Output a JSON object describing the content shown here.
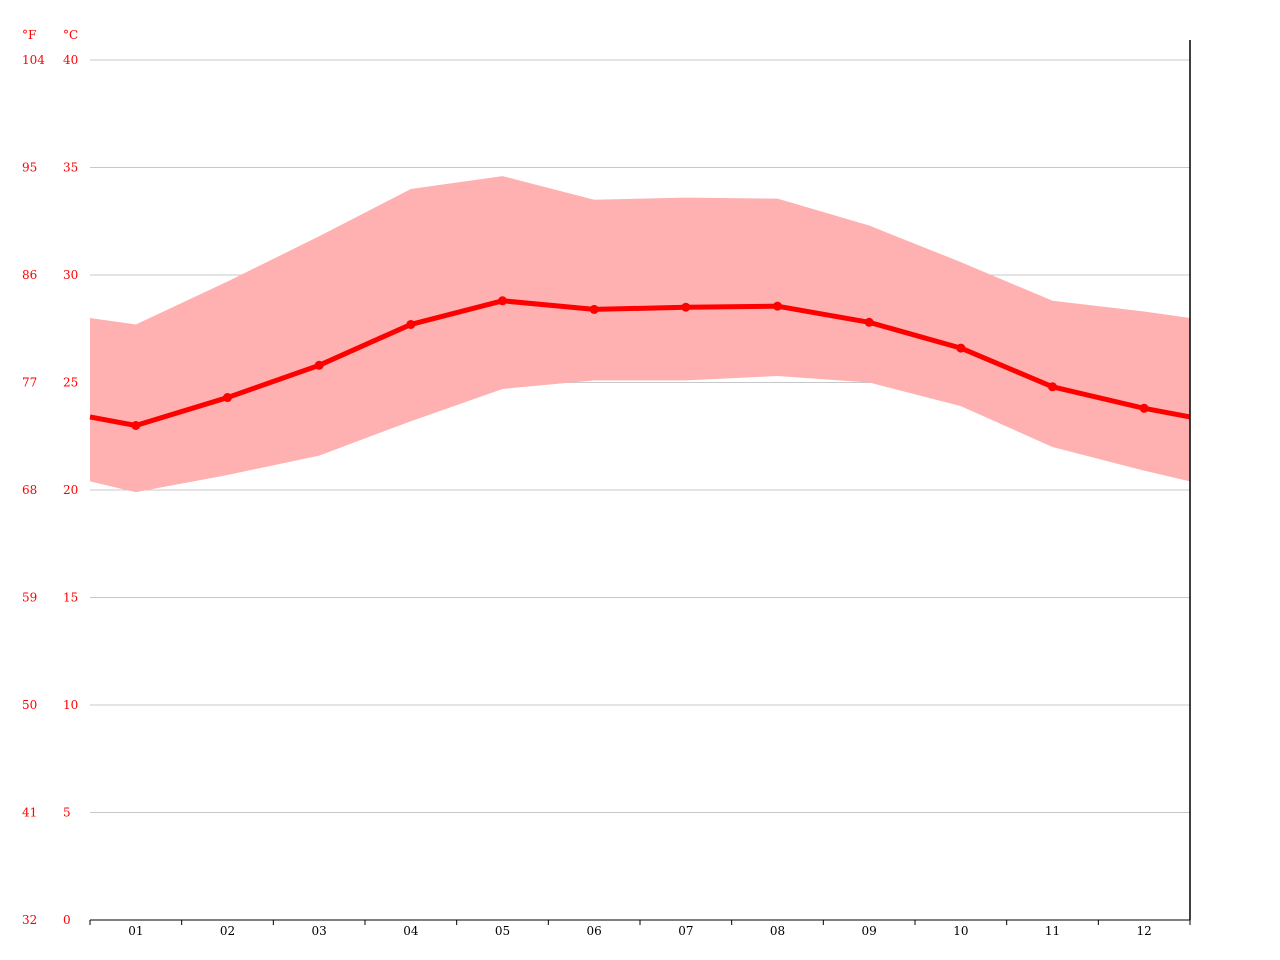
{
  "chart_data": {
    "type": "line",
    "title": "",
    "xlabel": "",
    "ylabel": "",
    "units": {
      "fahrenheit": "°F",
      "celsius": "°C"
    },
    "categories": [
      "01",
      "02",
      "03",
      "04",
      "05",
      "06",
      "07",
      "08",
      "09",
      "10",
      "11",
      "12"
    ],
    "ylim": [
      0,
      40
    ],
    "yticks_c": [
      "0",
      "5",
      "10",
      "15",
      "20",
      "25",
      "30",
      "35",
      "40"
    ],
    "yticks_f": [
      "32",
      "41",
      "50",
      "59",
      "68",
      "77",
      "86",
      "95",
      "104"
    ],
    "grid": true,
    "colors": {
      "line": "#ff0000",
      "band": "#ffb0b0",
      "grid": "#c8c8c8",
      "axis": "#000000",
      "tick_text": "#ff0000"
    },
    "series": [
      {
        "role": "mean",
        "values": [
          23.0,
          24.3,
          25.8,
          27.7,
          28.8,
          28.4,
          28.5,
          28.55,
          27.8,
          26.6,
          24.8,
          23.8
        ]
      },
      {
        "role": "max",
        "values": [
          27.7,
          29.7,
          31.8,
          34.0,
          34.6,
          33.5,
          33.6,
          33.55,
          32.3,
          30.6,
          28.8,
          28.3
        ]
      },
      {
        "role": "min",
        "values": [
          19.9,
          20.7,
          21.6,
          23.2,
          24.7,
          25.1,
          25.1,
          25.3,
          25.0,
          23.9,
          22.0,
          20.9
        ]
      }
    ]
  }
}
